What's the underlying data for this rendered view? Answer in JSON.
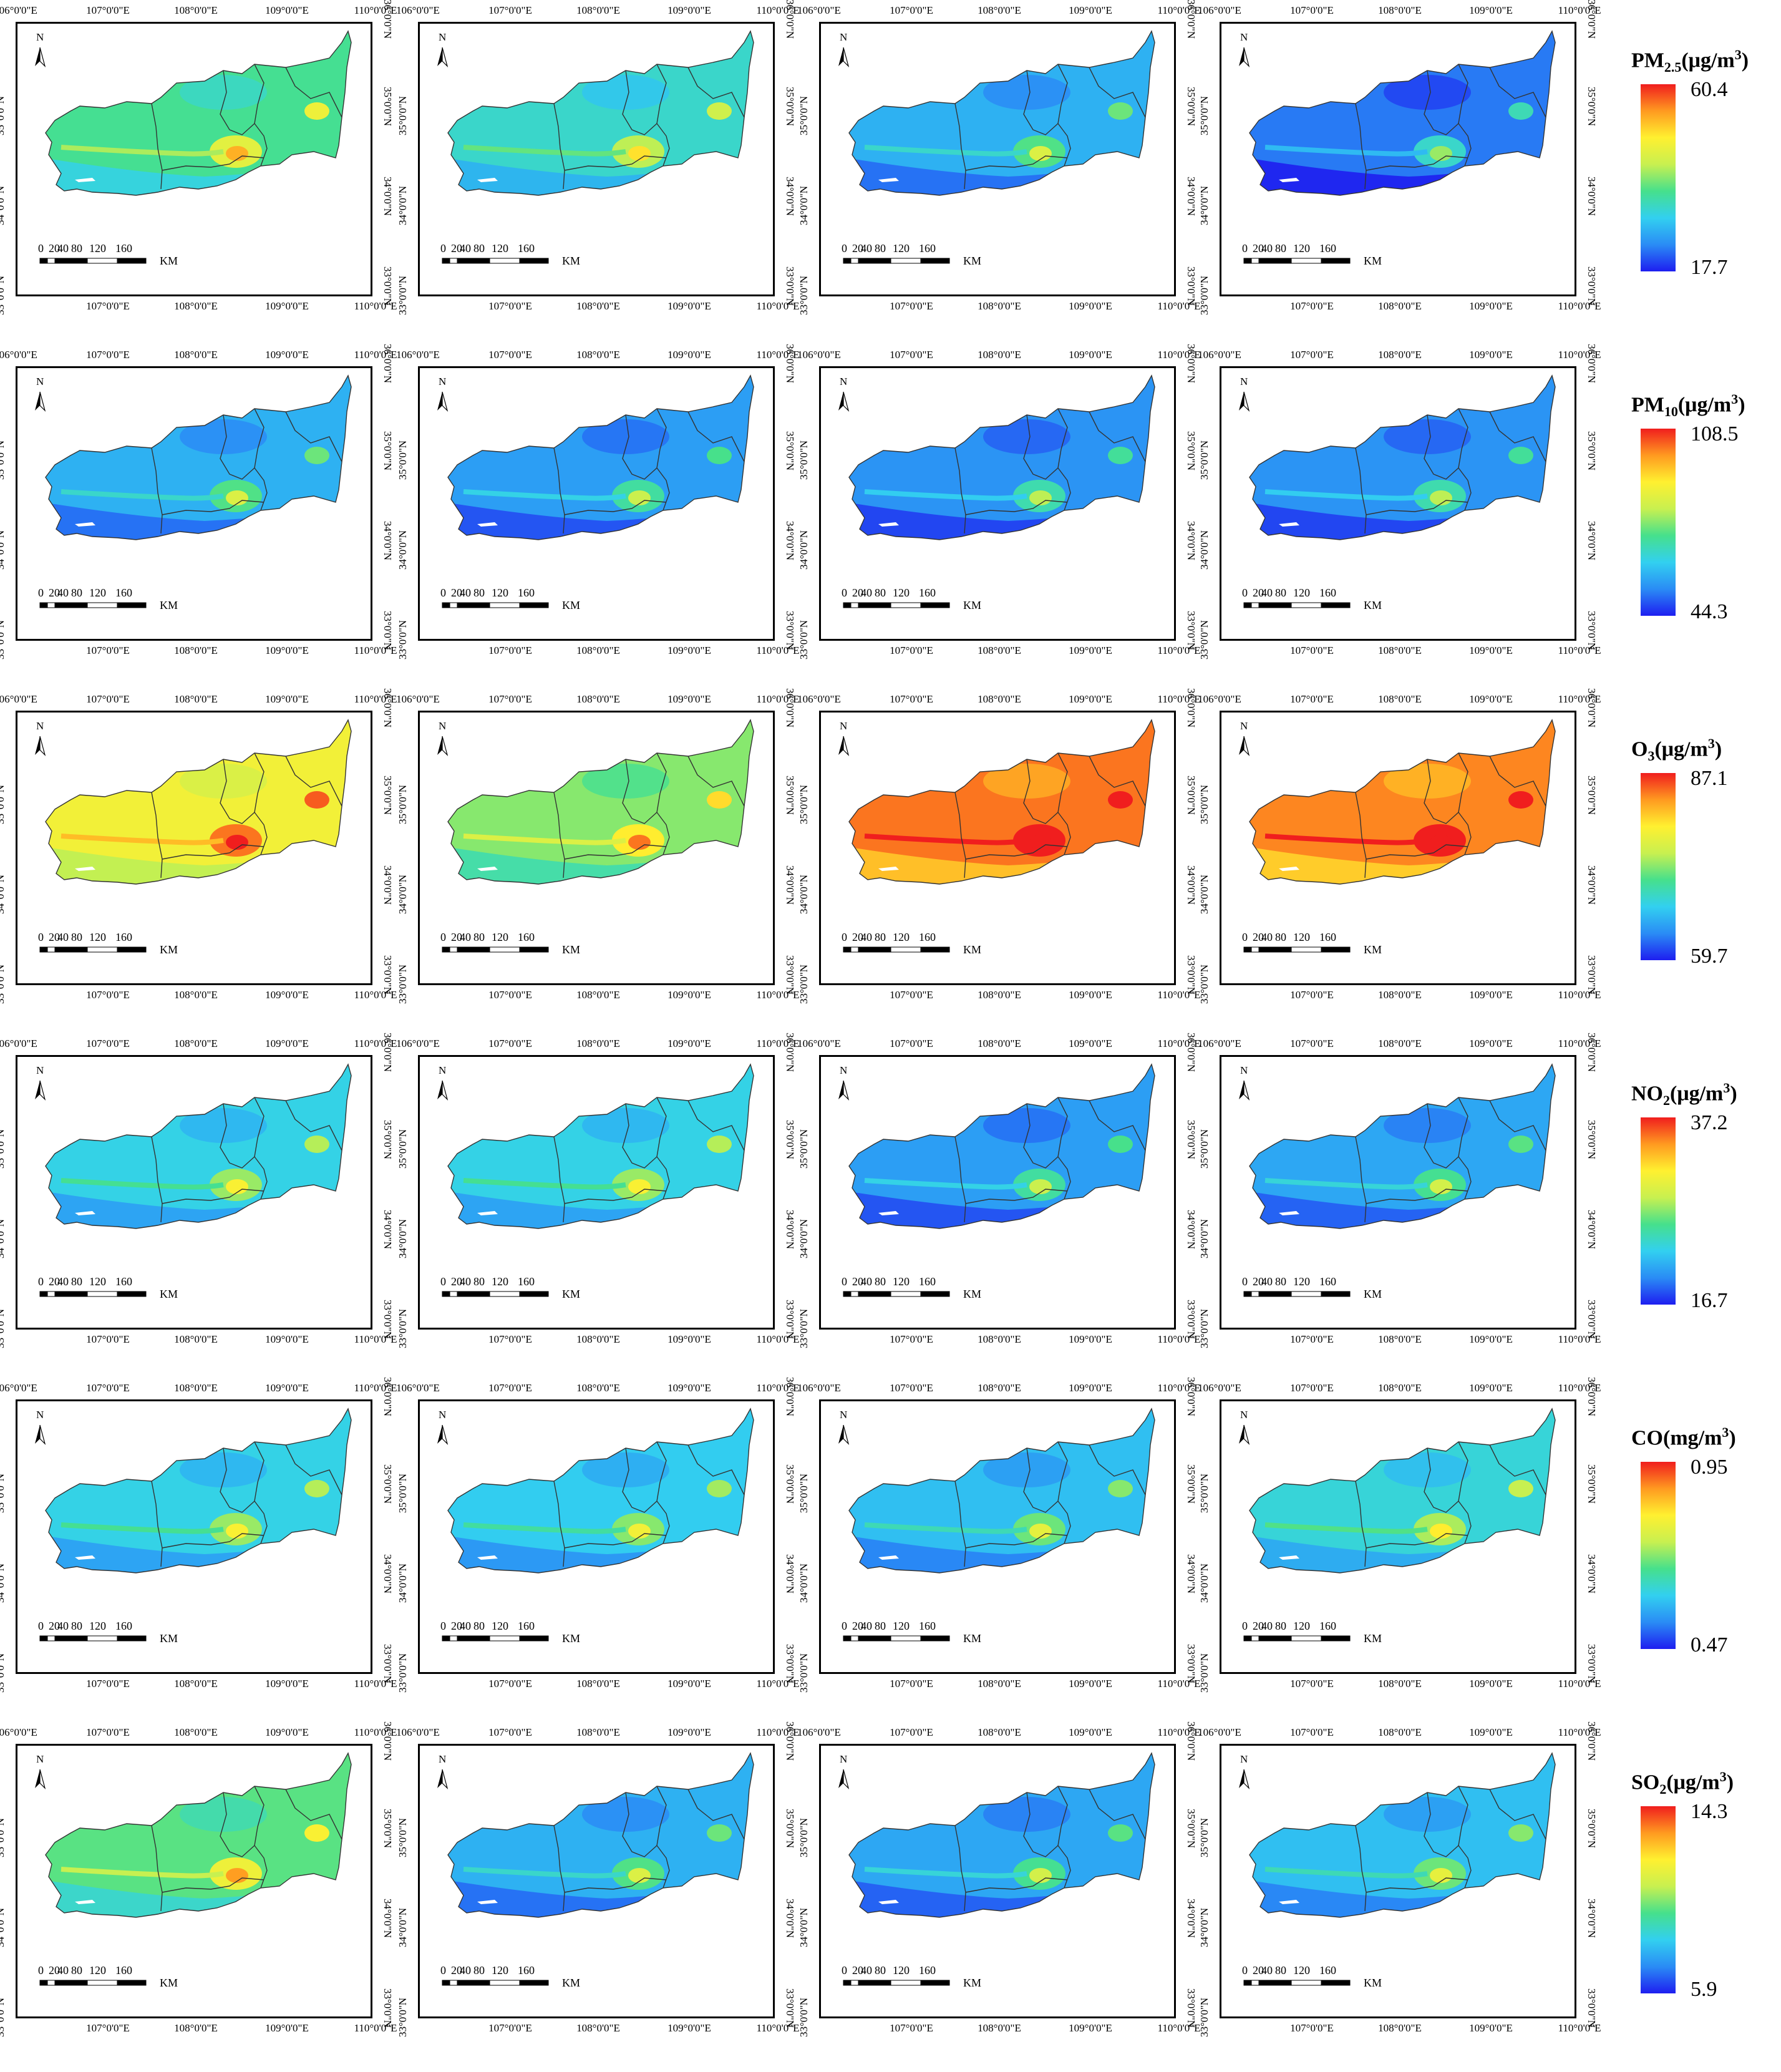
{
  "figure": {
    "rows": [
      {
        "pollutant": "PM2.5",
        "title_main": "PM",
        "title_sub": "2.5",
        "title_unit": "(μg/m",
        "title_sup": "3",
        "title_close": ")",
        "max": "60.4",
        "min": "17.7",
        "panel_levels": [
          0.42,
          0.34,
          0.22,
          0.12
        ]
      },
      {
        "pollutant": "PM10",
        "title_main": "PM",
        "title_sub": "10",
        "title_unit": "(μg/m",
        "title_sup": "3",
        "title_close": ")",
        "max": "108.5",
        "min": "44.3",
        "panel_levels": [
          0.22,
          0.18,
          0.16,
          0.16
        ]
      },
      {
        "pollutant": "O3",
        "title_main": "O",
        "title_sub": "3",
        "title_unit": "(μg/m",
        "title_sup": "3",
        "title_close": ")",
        "max": "87.1",
        "min": "59.7",
        "panel_levels": [
          0.68,
          0.5,
          0.9,
          0.88
        ]
      },
      {
        "pollutant": "NO2",
        "title_main": "NO",
        "title_sub": "2",
        "title_unit": "(μg/m",
        "title_sup": "3",
        "title_close": ")",
        "max": "37.2",
        "min": "16.7",
        "panel_levels": [
          0.3,
          0.3,
          0.18,
          0.2
        ]
      },
      {
        "pollutant": "CO",
        "title_main": "CO",
        "title_sub": "",
        "title_unit": "(mg/m",
        "title_sup": "3",
        "title_close": ")",
        "max": "0.95",
        "min": "0.47",
        "panel_levels": [
          0.3,
          0.28,
          0.25,
          0.32
        ]
      },
      {
        "pollutant": "SO2",
        "title_main": "SO",
        "title_sub": "2",
        "title_unit": "(μg/m",
        "title_sup": "3",
        "title_close": ")",
        "max": "14.3",
        "min": "5.9",
        "panel_levels": [
          0.45,
          0.22,
          0.2,
          0.25
        ]
      }
    ],
    "lon_labels": [
      "106°0'0\"E",
      "107°0'0\"E",
      "108°0'0\"E",
      "109°0'0\"E",
      "110°0'0\"E"
    ],
    "lat_labels": [
      "33°0'0\"N",
      "34°0'0\"N",
      "35°0'0\"N",
      "36°0'0\"N"
    ],
    "north_label": "N",
    "scale_labels": [
      "0",
      "20",
      "40",
      "80",
      "120",
      "160"
    ],
    "scale_unit": "KM",
    "colors": {
      "ramp": [
        "#1e1ef0",
        "#2a8cf5",
        "#32d0f0",
        "#46e08c",
        "#c8f050",
        "#fff030",
        "#ff9a20",
        "#f01e1e"
      ],
      "frame": "#000000",
      "boundary": "#333333"
    }
  }
}
